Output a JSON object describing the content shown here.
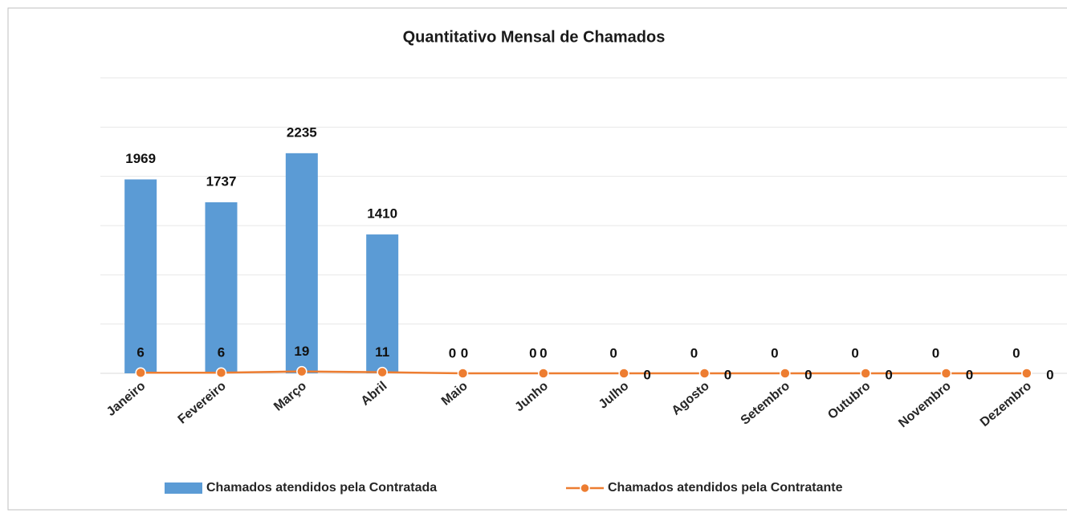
{
  "chart_data": {
    "type": "bar_line",
    "title": "Quantitativo Mensal de Chamados",
    "categories": [
      "Janeiro",
      "Fevereiro",
      "Março",
      "Abril",
      "Maio",
      "Junho",
      "Julho",
      "Agosto",
      "Setembro",
      "Outubro",
      "Novembro",
      "Dezembro"
    ],
    "series": [
      {
        "name": "Chamados atendidos pela Contratada",
        "type": "bar",
        "color": "#5b9bd5",
        "values": [
          1969,
          1737,
          2235,
          1410,
          0,
          0,
          0,
          0,
          0,
          0,
          0,
          0
        ]
      },
      {
        "name": "Chamados atendidos pela Contratante",
        "type": "line",
        "color": "#ed7d31",
        "values": [
          6,
          6,
          19,
          11,
          0,
          0,
          0,
          0,
          0,
          0,
          0,
          0
        ]
      }
    ],
    "ylim": [
      0,
      3000
    ],
    "yticks": [
      0,
      500,
      1000,
      1500,
      2000,
      2500,
      3000
    ],
    "grid": true,
    "legend": "bottom"
  }
}
